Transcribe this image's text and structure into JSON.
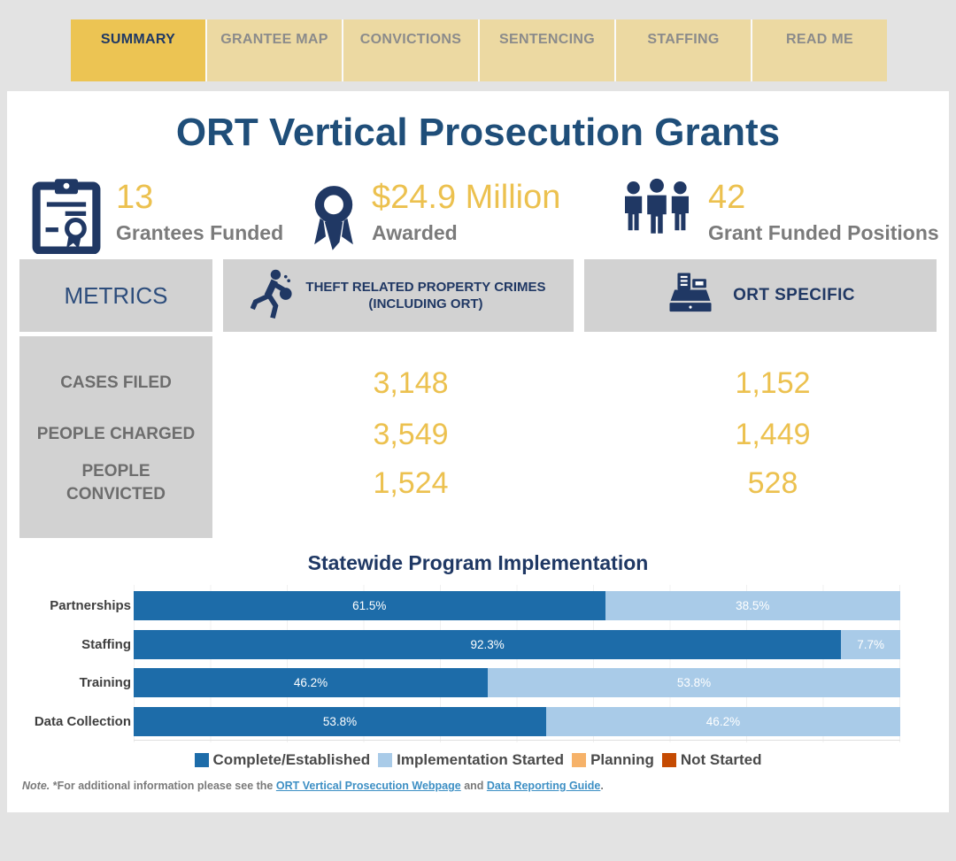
{
  "tabs": [
    {
      "label": "SUMMARY",
      "active": true
    },
    {
      "label": "GRANTEE MAP",
      "active": false
    },
    {
      "label": "CONVICTIONS",
      "active": false
    },
    {
      "label": "SENTENCING",
      "active": false
    },
    {
      "label": "STAFFING",
      "active": false
    },
    {
      "label": "READ ME",
      "active": false
    }
  ],
  "header": {
    "title": "ORT Vertical Prosecution Grants"
  },
  "stats": [
    {
      "icon": "clipboard-certificate-icon",
      "value": "13",
      "label": "Grantees Funded"
    },
    {
      "icon": "award-ribbon-icon",
      "value": "$24.9 Million",
      "label": "Awarded"
    },
    {
      "icon": "people-group-icon",
      "value": "42",
      "label": "Grant Funded Positions"
    }
  ],
  "metrics_table": {
    "header": {
      "metrics_label": "METRICS",
      "col1_icon": "running-thief-icon",
      "col1_line1": "THEFT RELATED PROPERTY CRIMES",
      "col1_line2": "(INCLUDING ORT)",
      "col2_icon": "cash-register-icon",
      "col2_label": "ORT SPECIFIC"
    },
    "rows": [
      {
        "label": "CASES FILED",
        "theft_related": "3,148",
        "ort_specific": "1,152"
      },
      {
        "label": "PEOPLE CHARGED",
        "theft_related": "3,549",
        "ort_specific": "1,449"
      },
      {
        "label": "PEOPLE\nCONVICTED",
        "theft_related": "1,524",
        "ort_specific": "528"
      }
    ]
  },
  "chart_data": {
    "type": "bar",
    "orientation": "horizontal",
    "stacked": true,
    "title": "Statewide Program Implementation",
    "categories": [
      "Partnerships",
      "Staffing",
      "Training",
      "Data Collection"
    ],
    "series": [
      {
        "name": "Complete/Established",
        "color": "#1d6ca9",
        "values": [
          61.5,
          92.3,
          46.2,
          53.8
        ]
      },
      {
        "name": "Implementation Started",
        "color": "#a9cbe8",
        "values": [
          38.5,
          7.7,
          53.8,
          46.2
        ]
      },
      {
        "name": "Planning",
        "color": "#f6b269",
        "values": [
          0,
          0,
          0,
          0
        ]
      },
      {
        "name": "Not Started",
        "color": "#c54b02",
        "values": [
          0,
          0,
          0,
          0
        ]
      }
    ],
    "value_label_format": "percent",
    "xlim": [
      0,
      100
    ],
    "grid": "faint-vertical",
    "legend_position": "bottom"
  },
  "note": {
    "prefix_italic": "Note.",
    "text_before": " *For additional information please see the ",
    "link1": "ORT Vertical Prosecution Webpage",
    "text_middle": " and ",
    "link2": "Data Reporting Guide",
    "suffix": "."
  },
  "colors": {
    "page_background": "#e3e3e3",
    "card_background": "#ffffff",
    "tab_active_background": "#ecc453",
    "tab_inactive_background": "#ecd9a2",
    "navy": "#1f3864",
    "title_navy": "#1f4e79",
    "gold_value": "#ecc14f",
    "gray_label": "#7b7b7b",
    "header_box_gray": "#d2d2d2",
    "link_blue": "#3d8fc4"
  }
}
